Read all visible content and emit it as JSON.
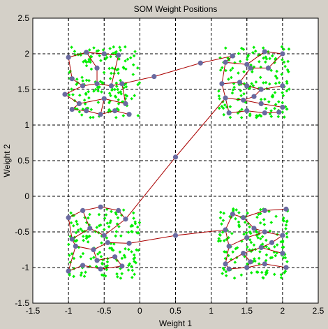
{
  "chart_data": {
    "type": "scatter",
    "title": "SOM Weight Positions",
    "xlabel": "Weight 1",
    "ylabel": "Weight 2",
    "xlim": [
      -1.5,
      2.5
    ],
    "ylim": [
      -1.5,
      2.5
    ],
    "xticks": [
      "-1.5",
      "-1",
      "-0.5",
      "0",
      "0.5",
      "1",
      "1.5",
      "2",
      "2.5"
    ],
    "yticks": [
      "-1.5",
      "-1",
      "-0.5",
      "0",
      "0.5",
      "1",
      "1.5",
      "2",
      "2.5"
    ],
    "grid": true,
    "colors": {
      "inputs": "#00ee00",
      "neurons": "#6a6aa0",
      "links": "#aa0000",
      "background": "#ffffff",
      "figure": "#d4d0c8"
    },
    "input_clusters": [
      {
        "center": [
          -0.5,
          1.6
        ],
        "half_width": 0.5,
        "count": 150
      },
      {
        "center": [
          1.6,
          1.6
        ],
        "half_width": 0.5,
        "count": 150
      },
      {
        "center": [
          -0.5,
          -0.65
        ],
        "half_width": 0.5,
        "count": 150
      },
      {
        "center": [
          1.6,
          -0.65
        ],
        "half_width": 0.5,
        "count": 150
      }
    ],
    "neurons": [
      [
        -1.0,
        1.95
      ],
      [
        -0.75,
        2.02
      ],
      [
        -0.5,
        2.0
      ],
      [
        -0.3,
        1.98
      ],
      [
        -0.95,
        1.65
      ],
      [
        -0.8,
        1.55
      ],
      [
        -0.6,
        1.58
      ],
      [
        -0.4,
        1.55
      ],
      [
        -0.25,
        1.58
      ],
      [
        -1.05,
        1.43
      ],
      [
        -0.85,
        1.3
      ],
      [
        -0.5,
        1.37
      ],
      [
        -0.2,
        1.3
      ],
      [
        -0.95,
        1.22
      ],
      [
        -0.75,
        1.2
      ],
      [
        -0.55,
        1.15
      ],
      [
        -0.35,
        1.2
      ],
      [
        -0.15,
        1.15
      ],
      [
        -0.6,
        1.8
      ],
      [
        0.2,
        1.68
      ],
      [
        0.85,
        1.87
      ],
      [
        1.3,
        1.97
      ],
      [
        1.2,
        1.88
      ],
      [
        1.5,
        1.85
      ],
      [
        1.75,
        2.03
      ],
      [
        2.0,
        2.0
      ],
      [
        1.15,
        1.58
      ],
      [
        1.4,
        1.6
      ],
      [
        1.55,
        1.8
      ],
      [
        1.8,
        1.8
      ],
      [
        1.5,
        1.55
      ],
      [
        1.7,
        1.5
      ],
      [
        2.0,
        1.55
      ],
      [
        1.2,
        1.38
      ],
      [
        1.45,
        1.35
      ],
      [
        1.7,
        1.3
      ],
      [
        2.0,
        1.25
      ],
      [
        1.25,
        1.17
      ],
      [
        1.5,
        1.2
      ],
      [
        1.75,
        1.17
      ],
      [
        1.95,
        1.18
      ],
      [
        1.6,
        1.4
      ],
      [
        0.5,
        0.55
      ],
      [
        -1.0,
        -0.3
      ],
      [
        -0.8,
        -0.2
      ],
      [
        -0.55,
        -0.15
      ],
      [
        -0.3,
        -0.2
      ],
      [
        -0.95,
        -0.6
      ],
      [
        -0.7,
        -0.45
      ],
      [
        -0.5,
        -0.55
      ],
      [
        -0.2,
        -0.32
      ],
      [
        -1.0,
        -1.05
      ],
      [
        -0.8,
        -0.97
      ],
      [
        -0.55,
        -1.02
      ],
      [
        -0.25,
        -0.98
      ],
      [
        -0.9,
        -0.7
      ],
      [
        -0.65,
        -0.75
      ],
      [
        -0.45,
        -0.65
      ],
      [
        -0.15,
        -0.66
      ],
      [
        -0.6,
        -0.9
      ],
      [
        -0.35,
        -0.85
      ],
      [
        0.5,
        -0.55
      ],
      [
        1.2,
        -0.47
      ],
      [
        1.45,
        -0.3
      ],
      [
        1.75,
        -0.2
      ],
      [
        2.05,
        -0.18
      ],
      [
        1.25,
        -0.7
      ],
      [
        1.5,
        -0.58
      ],
      [
        1.75,
        -0.5
      ],
      [
        2.0,
        -0.55
      ],
      [
        1.2,
        -0.95
      ],
      [
        1.45,
        -0.8
      ],
      [
        1.7,
        -0.72
      ],
      [
        2.0,
        -0.8
      ],
      [
        1.25,
        -1.02
      ],
      [
        1.5,
        -1.0
      ],
      [
        1.75,
        -0.95
      ],
      [
        2.05,
        -1.0
      ],
      [
        1.3,
        -0.25
      ],
      [
        1.6,
        -0.45
      ],
      [
        1.85,
        -0.65
      ],
      [
        1.55,
        -0.92
      ]
    ],
    "links": [
      [
        [
          -1.0,
          1.95
        ],
        [
          -0.75,
          2.02
        ]
      ],
      [
        [
          -0.75,
          2.02
        ],
        [
          -0.5,
          2.0
        ]
      ],
      [
        [
          -0.5,
          2.0
        ],
        [
          -0.3,
          1.98
        ]
      ],
      [
        [
          -0.75,
          2.02
        ],
        [
          -0.6,
          1.8
        ]
      ],
      [
        [
          -0.6,
          1.8
        ],
        [
          -0.6,
          1.58
        ]
      ],
      [
        [
          -1.0,
          1.95
        ],
        [
          -0.95,
          1.65
        ]
      ],
      [
        [
          -0.95,
          1.65
        ],
        [
          -0.8,
          1.55
        ]
      ],
      [
        [
          -0.8,
          1.55
        ],
        [
          -0.6,
          1.58
        ]
      ],
      [
        [
          -0.6,
          1.58
        ],
        [
          -0.4,
          1.55
        ]
      ],
      [
        [
          -0.4,
          1.55
        ],
        [
          -0.25,
          1.58
        ]
      ],
      [
        [
          -0.3,
          1.98
        ],
        [
          -0.4,
          1.55
        ]
      ],
      [
        [
          -0.8,
          1.55
        ],
        [
          -1.05,
          1.43
        ]
      ],
      [
        [
          -1.05,
          1.43
        ],
        [
          -0.85,
          1.3
        ]
      ],
      [
        [
          -0.85,
          1.3
        ],
        [
          -0.5,
          1.37
        ]
      ],
      [
        [
          -0.5,
          1.37
        ],
        [
          -0.2,
          1.3
        ]
      ],
      [
        [
          -0.85,
          1.3
        ],
        [
          -0.95,
          1.22
        ]
      ],
      [
        [
          -0.95,
          1.22
        ],
        [
          -0.75,
          1.2
        ]
      ],
      [
        [
          -0.75,
          1.2
        ],
        [
          -0.55,
          1.15
        ]
      ],
      [
        [
          -0.55,
          1.15
        ],
        [
          -0.35,
          1.2
        ]
      ],
      [
        [
          -0.35,
          1.2
        ],
        [
          -0.15,
          1.15
        ]
      ],
      [
        [
          -0.5,
          1.37
        ],
        [
          -0.55,
          1.15
        ]
      ],
      [
        [
          -0.25,
          1.58
        ],
        [
          -0.2,
          1.3
        ]
      ],
      [
        [
          -0.25,
          1.58
        ],
        [
          0.2,
          1.68
        ]
      ],
      [
        [
          0.2,
          1.68
        ],
        [
          0.85,
          1.87
        ]
      ],
      [
        [
          0.85,
          1.87
        ],
        [
          1.3,
          1.97
        ]
      ],
      [
        [
          1.3,
          1.97
        ],
        [
          1.2,
          1.88
        ]
      ],
      [
        [
          1.2,
          1.88
        ],
        [
          1.5,
          1.85
        ]
      ],
      [
        [
          1.5,
          1.85
        ],
        [
          1.75,
          2.03
        ]
      ],
      [
        [
          1.75,
          2.03
        ],
        [
          2.0,
          2.0
        ]
      ],
      [
        [
          1.2,
          1.88
        ],
        [
          1.15,
          1.58
        ]
      ],
      [
        [
          1.15,
          1.58
        ],
        [
          1.4,
          1.6
        ]
      ],
      [
        [
          1.4,
          1.6
        ],
        [
          1.55,
          1.8
        ]
      ],
      [
        [
          1.55,
          1.8
        ],
        [
          1.8,
          1.8
        ]
      ],
      [
        [
          1.8,
          1.8
        ],
        [
          2.0,
          2.0
        ]
      ],
      [
        [
          1.4,
          1.6
        ],
        [
          1.5,
          1.55
        ]
      ],
      [
        [
          1.5,
          1.55
        ],
        [
          1.7,
          1.5
        ]
      ],
      [
        [
          1.7,
          1.5
        ],
        [
          2.0,
          1.55
        ]
      ],
      [
        [
          1.15,
          1.58
        ],
        [
          1.2,
          1.38
        ]
      ],
      [
        [
          1.2,
          1.38
        ],
        [
          1.45,
          1.35
        ]
      ],
      [
        [
          1.45,
          1.35
        ],
        [
          1.7,
          1.3
        ]
      ],
      [
        [
          1.7,
          1.3
        ],
        [
          2.0,
          1.25
        ]
      ],
      [
        [
          1.2,
          1.38
        ],
        [
          1.25,
          1.17
        ]
      ],
      [
        [
          1.25,
          1.17
        ],
        [
          1.5,
          1.2
        ]
      ],
      [
        [
          1.5,
          1.2
        ],
        [
          1.75,
          1.17
        ]
      ],
      [
        [
          1.75,
          1.17
        ],
        [
          1.95,
          1.18
        ]
      ],
      [
        [
          1.45,
          1.35
        ],
        [
          1.6,
          1.4
        ]
      ],
      [
        [
          1.6,
          1.4
        ],
        [
          1.7,
          1.5
        ]
      ],
      [
        [
          1.2,
          1.38
        ],
        [
          0.5,
          0.55
        ]
      ],
      [
        [
          0.5,
          0.55
        ],
        [
          -0.2,
          -0.32
        ]
      ],
      [
        [
          -1.0,
          -0.3
        ],
        [
          -0.8,
          -0.2
        ]
      ],
      [
        [
          -0.8,
          -0.2
        ],
        [
          -0.55,
          -0.15
        ]
      ],
      [
        [
          -0.55,
          -0.15
        ],
        [
          -0.3,
          -0.2
        ]
      ],
      [
        [
          -0.3,
          -0.2
        ],
        [
          -0.2,
          -0.32
        ]
      ],
      [
        [
          -1.0,
          -0.3
        ],
        [
          -0.95,
          -0.6
        ]
      ],
      [
        [
          -0.95,
          -0.6
        ],
        [
          -0.7,
          -0.45
        ]
      ],
      [
        [
          -0.7,
          -0.45
        ],
        [
          -0.5,
          -0.55
        ]
      ],
      [
        [
          -0.5,
          -0.55
        ],
        [
          -0.2,
          -0.32
        ]
      ],
      [
        [
          -0.8,
          -0.2
        ],
        [
          -0.7,
          -0.45
        ]
      ],
      [
        [
          -0.95,
          -0.6
        ],
        [
          -0.9,
          -0.7
        ]
      ],
      [
        [
          -0.9,
          -0.7
        ],
        [
          -0.65,
          -0.75
        ]
      ],
      [
        [
          -0.65,
          -0.75
        ],
        [
          -0.45,
          -0.65
        ]
      ],
      [
        [
          -0.45,
          -0.65
        ],
        [
          -0.15,
          -0.66
        ]
      ],
      [
        [
          -0.9,
          -0.7
        ],
        [
          -1.0,
          -1.05
        ]
      ],
      [
        [
          -1.0,
          -1.05
        ],
        [
          -0.8,
          -0.97
        ]
      ],
      [
        [
          -0.8,
          -0.97
        ],
        [
          -0.55,
          -1.02
        ]
      ],
      [
        [
          -0.55,
          -1.02
        ],
        [
          -0.25,
          -0.98
        ]
      ],
      [
        [
          -0.65,
          -0.75
        ],
        [
          -0.6,
          -0.9
        ]
      ],
      [
        [
          -0.6,
          -0.9
        ],
        [
          -0.35,
          -0.85
        ]
      ],
      [
        [
          -0.35,
          -0.85
        ],
        [
          -0.25,
          -0.98
        ]
      ],
      [
        [
          -0.15,
          -0.66
        ],
        [
          0.5,
          -0.55
        ]
      ],
      [
        [
          0.5,
          -0.55
        ],
        [
          1.2,
          -0.47
        ]
      ],
      [
        [
          1.2,
          -0.47
        ],
        [
          1.3,
          -0.25
        ]
      ],
      [
        [
          1.3,
          -0.25
        ],
        [
          1.45,
          -0.3
        ]
      ],
      [
        [
          1.45,
          -0.3
        ],
        [
          1.75,
          -0.2
        ]
      ],
      [
        [
          1.75,
          -0.2
        ],
        [
          2.05,
          -0.18
        ]
      ],
      [
        [
          1.2,
          -0.47
        ],
        [
          1.25,
          -0.7
        ]
      ],
      [
        [
          1.25,
          -0.7
        ],
        [
          1.5,
          -0.58
        ]
      ],
      [
        [
          1.5,
          -0.58
        ],
        [
          1.75,
          -0.5
        ]
      ],
      [
        [
          1.75,
          -0.5
        ],
        [
          2.0,
          -0.55
        ]
      ],
      [
        [
          1.45,
          -0.3
        ],
        [
          1.6,
          -0.45
        ]
      ],
      [
        [
          1.6,
          -0.45
        ],
        [
          1.75,
          -0.5
        ]
      ],
      [
        [
          1.25,
          -0.7
        ],
        [
          1.2,
          -0.95
        ]
      ],
      [
        [
          1.2,
          -0.95
        ],
        [
          1.45,
          -0.8
        ]
      ],
      [
        [
          1.45,
          -0.8
        ],
        [
          1.7,
          -0.72
        ]
      ],
      [
        [
          1.7,
          -0.72
        ],
        [
          2.0,
          -0.8
        ]
      ],
      [
        [
          1.2,
          -0.95
        ],
        [
          1.25,
          -1.02
        ]
      ],
      [
        [
          1.25,
          -1.02
        ],
        [
          1.5,
          -1.0
        ]
      ],
      [
        [
          1.5,
          -1.0
        ],
        [
          1.75,
          -0.95
        ]
      ],
      [
        [
          1.75,
          -0.95
        ],
        [
          2.05,
          -1.0
        ]
      ],
      [
        [
          1.45,
          -0.8
        ],
        [
          1.55,
          -0.92
        ]
      ],
      [
        [
          1.55,
          -0.92
        ],
        [
          1.5,
          -1.0
        ]
      ],
      [
        [
          1.7,
          -0.72
        ],
        [
          1.85,
          -0.65
        ]
      ],
      [
        [
          1.85,
          -0.65
        ],
        [
          2.0,
          -0.55
        ]
      ]
    ]
  }
}
